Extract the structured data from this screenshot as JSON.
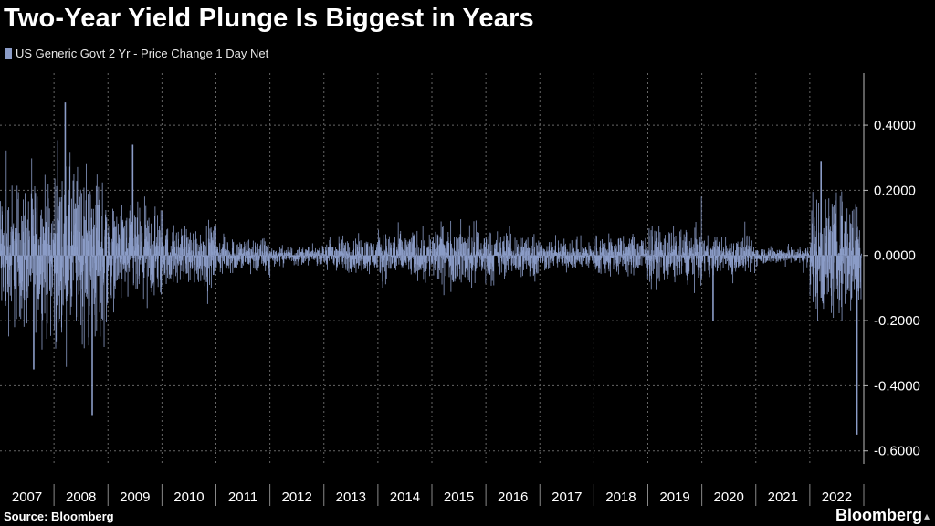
{
  "title": "Two-Year Yield Plunge Is Biggest in Years",
  "source": "Source: Bloomberg",
  "brand": "Bloomberg",
  "colors": {
    "background": "#000000",
    "series": "#8b9cc7",
    "grid": "#666666",
    "text": "#ffffff"
  },
  "chart_data": {
    "type": "bar",
    "title": "Two-Year Yield Plunge Is Biggest in Years",
    "xlabel": "",
    "ylabel": "",
    "legend_position": "top-left",
    "grid": true,
    "series": [
      {
        "name": "US Generic Govt 2 Yr - Price Change 1 Day Net",
        "description": "daily net price change, 2007 to late 2022",
        "notable_points": [
          {
            "x": "2008-03",
            "y": 0.47
          },
          {
            "x": "2008-09",
            "y": -0.49
          },
          {
            "x": "2007-08",
            "y": -0.35
          },
          {
            "x": "2009-06",
            "y": 0.34
          },
          {
            "x": "2022-03",
            "y": 0.29
          },
          {
            "x": "2020-03",
            "y": -0.2
          },
          {
            "x": "2022-11",
            "y": -0.55
          }
        ],
        "volatility_by_year": [
          {
            "year": 2007,
            "amplitude": 0.12
          },
          {
            "year": 2008,
            "amplitude": 0.15
          },
          {
            "year": 2009,
            "amplitude": 0.08
          },
          {
            "year": 2010,
            "amplitude": 0.05
          },
          {
            "year": 2011,
            "amplitude": 0.03
          },
          {
            "year": 2012,
            "amplitude": 0.015
          },
          {
            "year": 2013,
            "amplitude": 0.03
          },
          {
            "year": 2014,
            "amplitude": 0.04
          },
          {
            "year": 2015,
            "amplitude": 0.05
          },
          {
            "year": 2016,
            "amplitude": 0.04
          },
          {
            "year": 2017,
            "amplitude": 0.025
          },
          {
            "year": 2018,
            "amplitude": 0.035
          },
          {
            "year": 2019,
            "amplitude": 0.045
          },
          {
            "year": 2020,
            "amplitude": 0.03
          },
          {
            "year": 2021,
            "amplitude": 0.015
          },
          {
            "year": 2022,
            "amplitude": 0.1
          }
        ]
      }
    ],
    "x_ticks": [
      "2007",
      "2008",
      "2009",
      "2010",
      "2011",
      "2012",
      "2013",
      "2014",
      "2015",
      "2016",
      "2017",
      "2018",
      "2019",
      "2020",
      "2021",
      "2022"
    ],
    "y_ticks": [
      0.4,
      0.2,
      0.0,
      -0.2,
      -0.4,
      -0.6
    ],
    "y_tick_labels": [
      "0.4000",
      "0.2000",
      "0.0000",
      "-0.2000",
      "-0.4000",
      "-0.6000"
    ],
    "ylim": [
      -0.64,
      0.56
    ],
    "xlim": [
      "2007-01",
      "2022-12"
    ]
  }
}
